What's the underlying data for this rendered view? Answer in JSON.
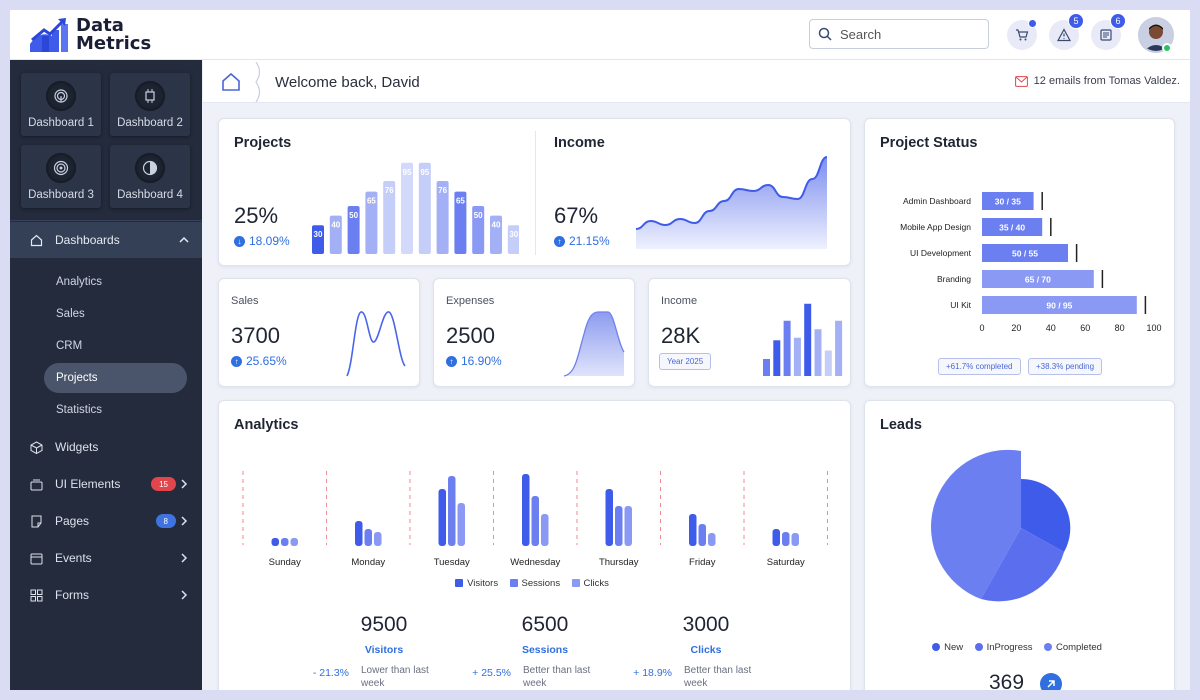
{
  "app": {
    "logo_line1": "Data",
    "logo_line2": "Metrics"
  },
  "topbar": {
    "search_placeholder": "Search",
    "cart_icon": "cart-icon",
    "alerts_count": "5",
    "messages_count": "6"
  },
  "sidebar": {
    "dashboards": [
      "Dashboard 1",
      "Dashboard 2",
      "Dashboard 3",
      "Dashboard 4"
    ],
    "section_label": "Dashboards",
    "sub_items": [
      "Analytics",
      "Sales",
      "CRM",
      "Projects",
      "Statistics"
    ],
    "active_sub": "Projects",
    "items": [
      {
        "label": "Widgets",
        "icon": "cube-icon"
      },
      {
        "label": "UI Elements",
        "icon": "layers-icon",
        "badge": "15",
        "badge_color": "#e2454c"
      },
      {
        "label": "Pages",
        "icon": "page-icon",
        "badge": "8",
        "badge_color": "#3f74e0"
      },
      {
        "label": "Events",
        "icon": "calendar-icon"
      },
      {
        "label": "Forms",
        "icon": "grid-icon"
      }
    ]
  },
  "welcome": {
    "text": "Welcome back, David",
    "mail_text": "12 emails from Tomas Valdez."
  },
  "projects": {
    "title": "Projects",
    "value": "25%",
    "delta": "18.09%",
    "bars": [
      30,
      40,
      50,
      65,
      76,
      95,
      95,
      76,
      65,
      50,
      40,
      30
    ]
  },
  "income": {
    "title": "Income",
    "value": "67%",
    "delta": "21.15%",
    "series": [
      20,
      28,
      24,
      30,
      26,
      38,
      48,
      60,
      58,
      64,
      52,
      50,
      70,
      92
    ]
  },
  "sales": {
    "title": "Sales",
    "value": "3700",
    "delta": "25.65%"
  },
  "expenses": {
    "title": "Expenses",
    "value": "2500",
    "delta": "16.90%"
  },
  "income2": {
    "title": "Income",
    "value": "28K",
    "tag": "Year 2025",
    "bars": [
      20,
      42,
      65,
      45,
      85,
      55,
      30,
      65
    ]
  },
  "project_status": {
    "title": "Project Status",
    "rows": [
      {
        "name": "Admin Dashboard",
        "done": 30,
        "total": 35,
        "label": "30 / 35"
      },
      {
        "name": "Mobile App Design",
        "done": 35,
        "total": 40,
        "label": "35 / 40"
      },
      {
        "name": "UI Development",
        "done": 50,
        "total": 55,
        "label": "50 / 55"
      },
      {
        "name": "Branding",
        "done": 65,
        "total": 70,
        "label": "65 / 70"
      },
      {
        "name": "UI Kit",
        "done": 90,
        "total": 95,
        "label": "90 / 95"
      }
    ],
    "ticks": [
      "0",
      "20",
      "40",
      "60",
      "80",
      "100"
    ],
    "tag1": "+61.7% completed",
    "tag2": "+38.3% pending"
  },
  "analytics": {
    "title": "Analytics",
    "days": [
      "Sunday",
      "Monday",
      "Tuesday",
      "Wednesday",
      "Thursday",
      "Friday",
      "Saturday"
    ],
    "visitors": [
      8,
      25,
      57,
      72,
      57,
      32,
      17
    ],
    "sessions": [
      8,
      17,
      70,
      50,
      40,
      22,
      14
    ],
    "clicks": [
      8,
      14,
      43,
      32,
      40,
      13,
      13
    ],
    "legend": [
      "Visitors",
      "Sessions",
      "Clicks"
    ],
    "stats": [
      {
        "value": "9500",
        "label": "Visitors",
        "pct": "- 21.3%",
        "desc": "Lower than last week"
      },
      {
        "value": "6500",
        "label": "Sessions",
        "pct": "+ 25.5%",
        "desc": "Better than last week"
      },
      {
        "value": "3000",
        "label": "Clicks",
        "pct": "+ 18.9%",
        "desc": "Better than last week"
      }
    ]
  },
  "leads": {
    "title": "Leads",
    "legend": [
      "New",
      "InProgress",
      "Completed"
    ],
    "total": "369"
  },
  "colors": {
    "primary": "#3f5bea",
    "mid": "#6b7ff0",
    "light": "#a3b0f5",
    "sidebar": "#232b3c"
  }
}
